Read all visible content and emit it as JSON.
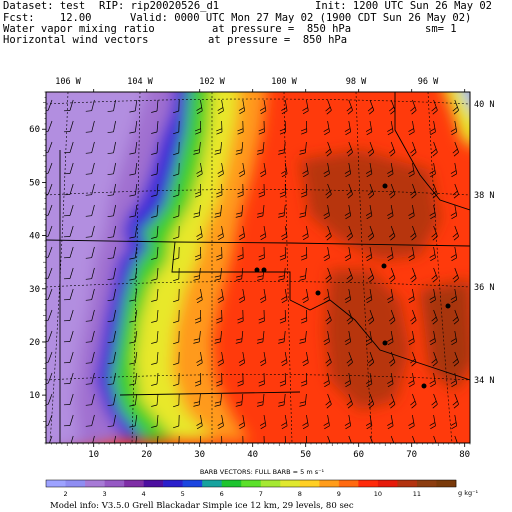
{
  "header": {
    "dataset": "Dataset: test",
    "rip": "RIP: rip20020526_d1",
    "init": "Init: 1200 UTC Sun 26 May 02",
    "fcst": "Fcst:    12.00",
    "valid": "Valid: 0000 UTC Mon 27 May 02 (1900 CDT Sun 26 May 02)",
    "field1": "Water vapor mixing ratio",
    "field1_level": "at pressure =  850 hPa",
    "field1_extra": "sm= 1",
    "field2": "Horizontal wind vectors",
    "field2_level": "at pressure =  850 hPa"
  },
  "map": {
    "top_lon_labels": [
      "106 W",
      "104 W",
      "102 W",
      "100 W",
      "98 W",
      "96 W"
    ],
    "right_lat_labels": [
      "40 N",
      "38 N",
      "36 N",
      "34 N"
    ],
    "x_ticks": [
      "10",
      "20",
      "30",
      "40",
      "50",
      "60",
      "70",
      "80"
    ],
    "y_ticks": [
      "10",
      "20",
      "30",
      "40",
      "50",
      "60"
    ],
    "cities_count": 9
  },
  "colorbar": {
    "barb_note": "BARB VECTORS:  FULL BARB = 5 m s⁻¹",
    "labels": [
      "2",
      "3",
      "4",
      "5",
      "6",
      "7",
      "8",
      "9",
      "10",
      "11"
    ],
    "unit": "g kg⁻¹",
    "colors": [
      "#9da2ff",
      "#8f8df2",
      "#a77ad6",
      "#9659c4",
      "#7f2ea6",
      "#4d0fa0",
      "#2a1fcc",
      "#1b45e0",
      "#17a29e",
      "#1ec430",
      "#5be02a",
      "#a5e832",
      "#e0e82e",
      "#ffcf24",
      "#ff9c1a",
      "#ff6a10",
      "#ff2a0a",
      "#e61a0a",
      "#b3330f",
      "#8c3d10",
      "#7a3a0a"
    ]
  },
  "footer": {
    "model_info": "Model info: V3.5.0   Grell     Blackadar   Simple ice    12 km,  29 levels,    80 sec"
  },
  "palette_note": {
    "violet": "#9966cc",
    "blue": "#2233dd",
    "green": "#33cc22",
    "yellow": "#e8e82a",
    "red": "#ff2a0a",
    "brown": "#8c3d10"
  }
}
